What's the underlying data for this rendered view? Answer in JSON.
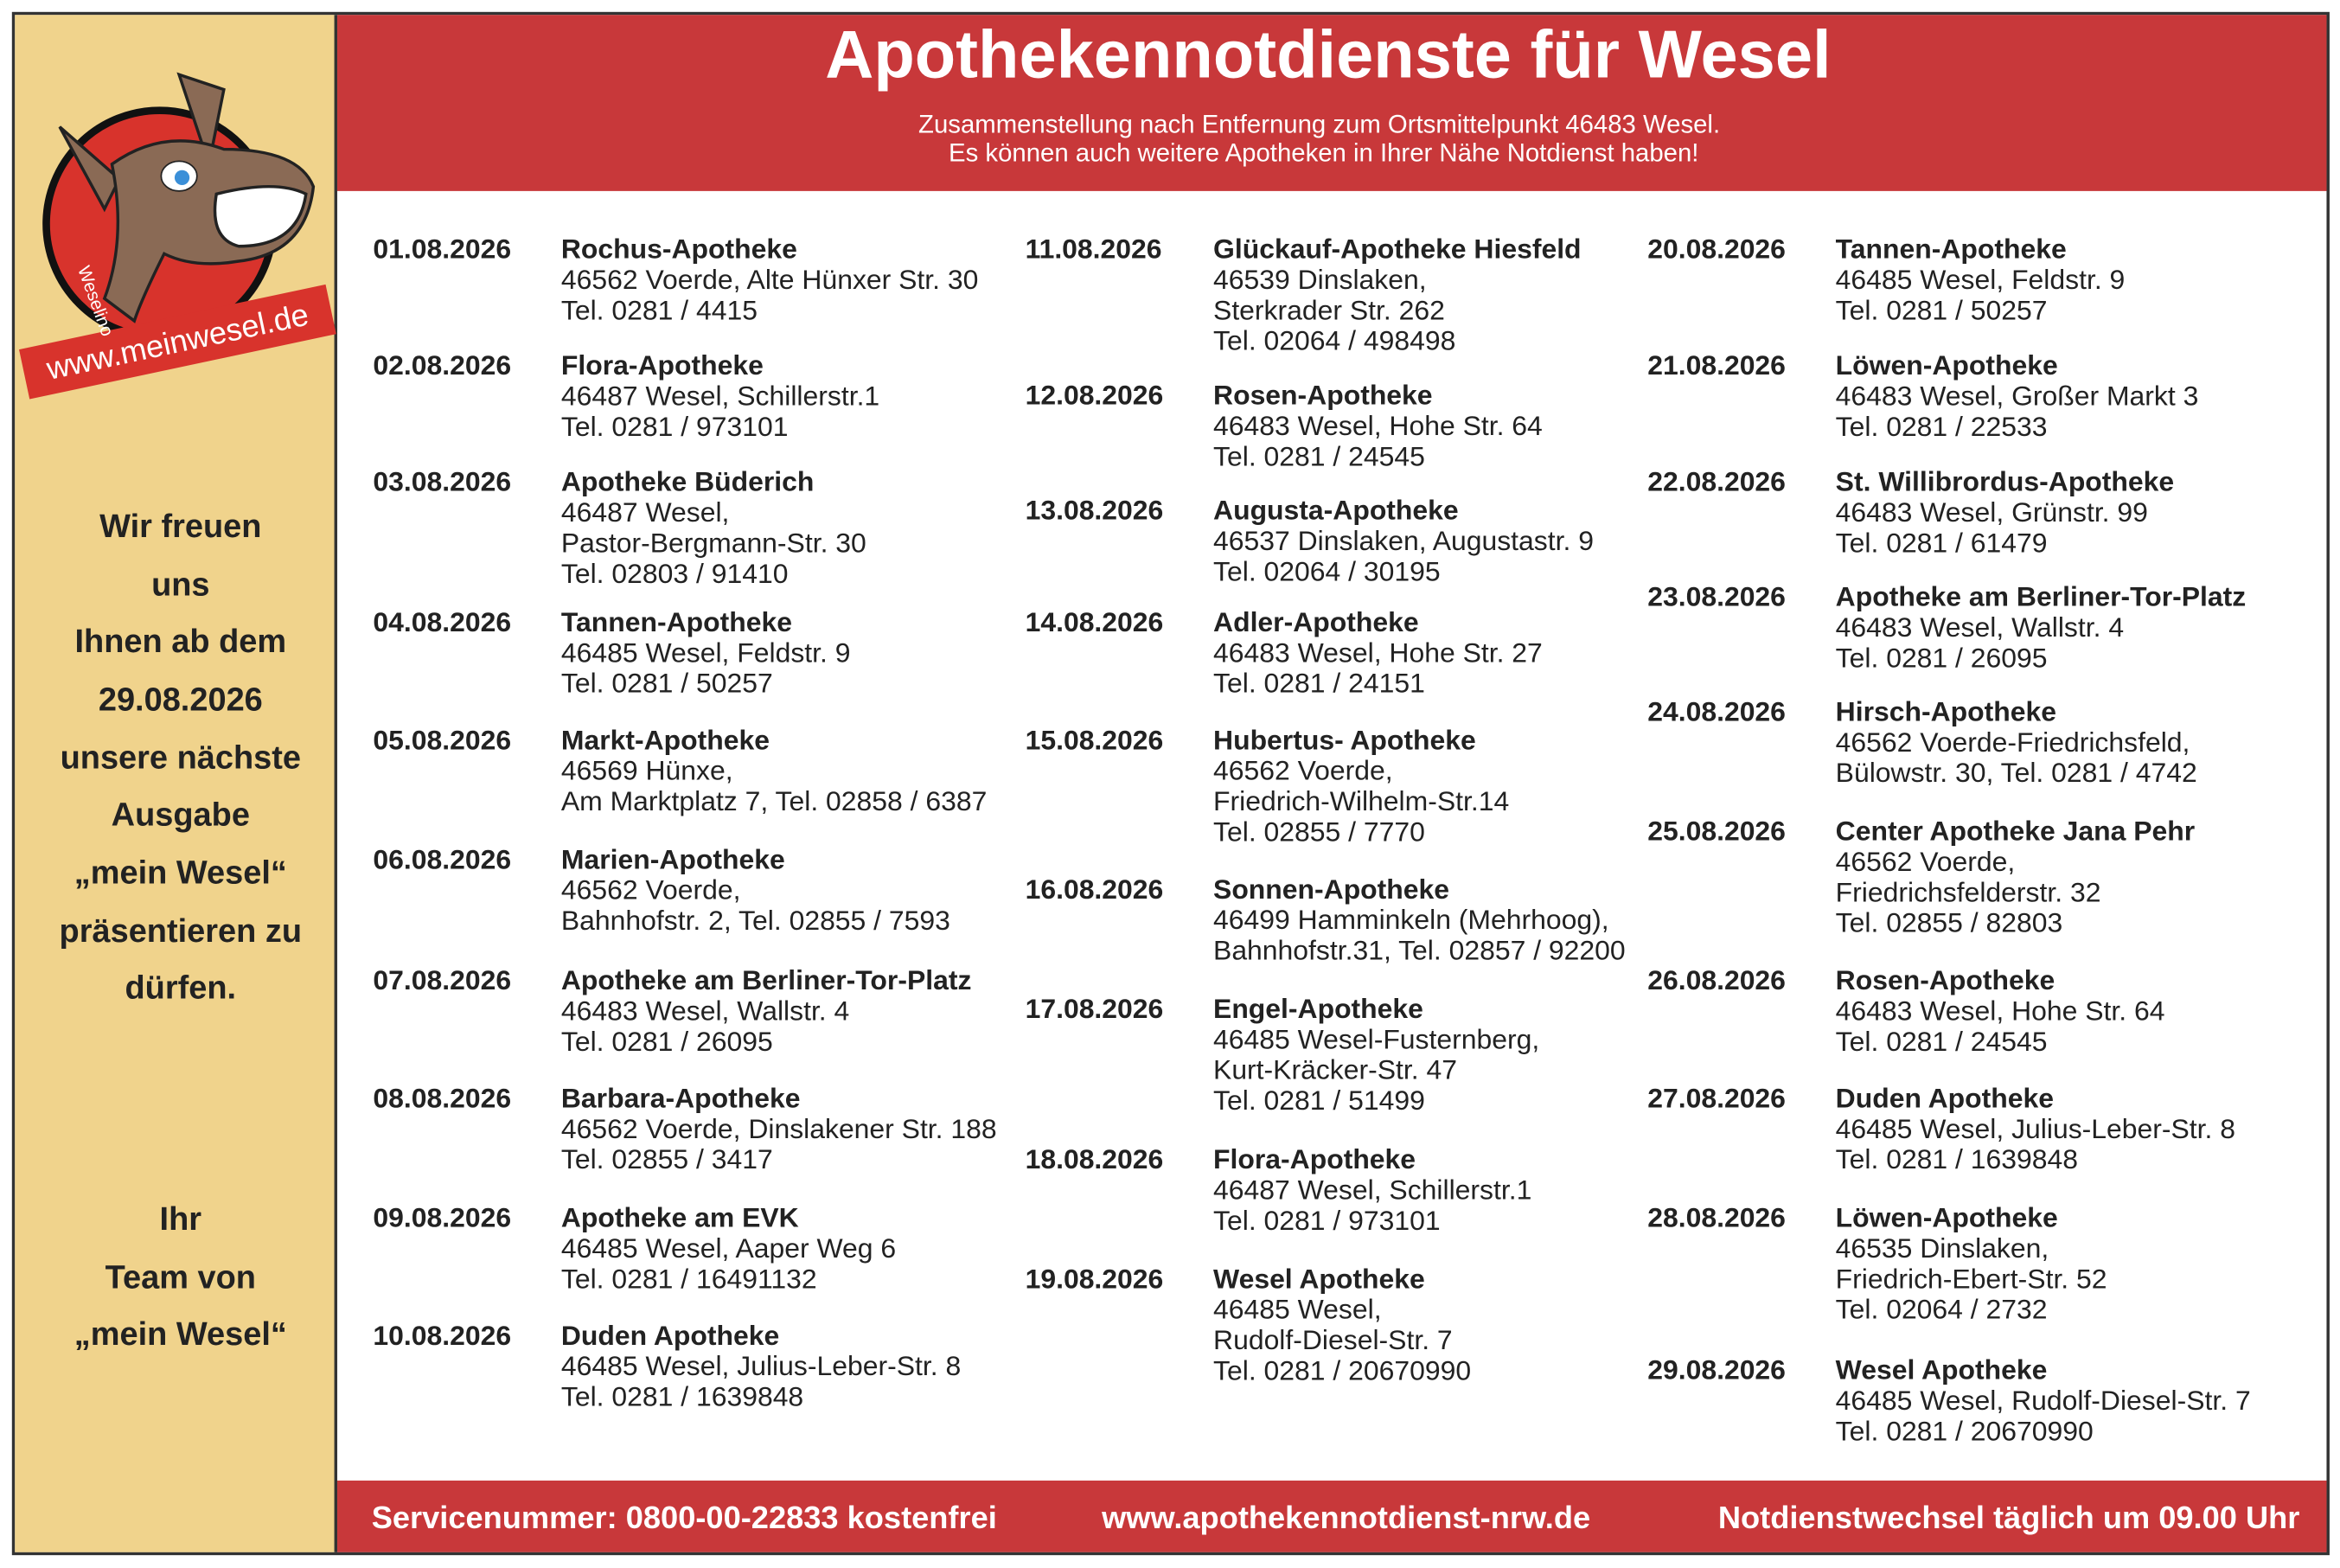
{
  "logo": {
    "mascot": "Weselino",
    "url": "www.meinwesel.de"
  },
  "header": {
    "title": "Apothekennotdienste für Wesel",
    "subtitle": [
      "Zusammenstellung nach Entfernung zum Ortsmittelpunkt 46483 Wesel.",
      "Es können auch weitere Apotheken in Ihrer Nähe Notdienst haben!"
    ]
  },
  "sidebar": {
    "message": [
      "Wir freuen",
      "uns",
      "Ihnen ab dem",
      "29.08.2026",
      "unsere nächste",
      "Ausgabe",
      "„mein Wesel“",
      "präsentieren zu",
      "dürfen."
    ],
    "signature": [
      "Ihr",
      "Team von",
      "„mein Wesel“"
    ]
  },
  "columns": [
    [
      {
        "date": "01.08.2026",
        "name": "Rochus-Apotheke",
        "lines": [
          "46562 Voerde, Alte Hünxer Str. 30",
          "Tel. 0281 / 4415"
        ]
      },
      {
        "date": "02.08.2026",
        "name": "Flora-Apotheke",
        "lines": [
          "46487 Wesel, Schillerstr.1",
          "Tel. 0281 / 973101"
        ]
      },
      {
        "date": "03.08.2026",
        "name": "Apotheke Büderich",
        "lines": [
          "46487 Wesel,",
          "Pastor-Bergmann-Str. 30",
          "Tel. 02803 / 91410"
        ]
      },
      {
        "date": "04.08.2026",
        "name": "Tannen-Apotheke",
        "lines": [
          "46485 Wesel, Feldstr. 9",
          "Tel. 0281 / 50257"
        ]
      },
      {
        "date": "05.08.2026",
        "name": "Markt-Apotheke",
        "lines": [
          "46569 Hünxe,",
          "Am Marktplatz 7, Tel. 02858 / 6387"
        ]
      },
      {
        "date": "06.08.2026",
        "name": "Marien-Apotheke",
        "lines": [
          "46562 Voerde,",
          "Bahnhofstr. 2, Tel. 02855 / 7593"
        ]
      },
      {
        "date": "07.08.2026",
        "name": "Apotheke am Berliner-Tor-Platz",
        "lines": [
          "46483 Wesel, Wallstr. 4",
          "Tel. 0281 / 26095"
        ]
      },
      {
        "date": "08.08.2026",
        "name": "Barbara-Apotheke",
        "lines": [
          "46562 Voerde, Dinslakener Str. 188",
          "Tel. 02855 / 3417"
        ]
      },
      {
        "date": "09.08.2026",
        "name": "Apotheke am EVK",
        "lines": [
          "46485 Wesel, Aaper Weg 6",
          "Tel. 0281 / 16491132"
        ]
      },
      {
        "date": "10.08.2026",
        "name": "Duden Apotheke",
        "lines": [
          "46485 Wesel, Julius-Leber-Str. 8",
          "Tel. 0281 / 1639848"
        ]
      }
    ],
    [
      {
        "date": "11.08.2026",
        "name": "Glückauf-Apotheke Hiesfeld",
        "lines": [
          "46539 Dinslaken,",
          "Sterkrader Str. 262",
          "Tel. 02064 / 498498"
        ]
      },
      {
        "date": "12.08.2026",
        "name": "Rosen-Apotheke",
        "lines": [
          "46483 Wesel, Hohe Str. 64",
          "Tel. 0281 / 24545"
        ]
      },
      {
        "date": "13.08.2026",
        "name": "Augusta-Apotheke",
        "lines": [
          "46537 Dinslaken, Augustastr. 9",
          "Tel. 02064 / 30195"
        ]
      },
      {
        "date": "14.08.2026",
        "name": "Adler-Apotheke",
        "lines": [
          "46483 Wesel, Hohe Str. 27",
          "Tel. 0281 / 24151"
        ]
      },
      {
        "date": "15.08.2026",
        "name": "Hubertus- Apotheke",
        "lines": [
          "46562 Voerde,",
          "Friedrich-Wilhelm-Str.14",
          "Tel. 02855 / 7770"
        ]
      },
      {
        "date": "16.08.2026",
        "name": "Sonnen-Apotheke",
        "lines": [
          "46499 Hamminkeln (Mehrhoog),",
          "Bahnhofstr.31, Tel. 02857 / 92200"
        ]
      },
      {
        "date": "17.08.2026",
        "name": "Engel-Apotheke",
        "lines": [
          "46485 Wesel-Fusternberg,",
          "Kurt-Kräcker-Str. 47",
          "Tel. 0281 / 51499"
        ]
      },
      {
        "date": "18.08.2026",
        "name": "Flora-Apotheke",
        "lines": [
          "46487 Wesel, Schillerstr.1",
          "Tel. 0281 / 973101"
        ]
      },
      {
        "date": "19.08.2026",
        "name": "Wesel Apotheke",
        "lines": [
          "46485 Wesel,",
          "Rudolf-Diesel-Str. 7",
          "Tel. 0281 / 20670990"
        ]
      }
    ],
    [
      {
        "date": "20.08.2026",
        "name": "Tannen-Apotheke",
        "lines": [
          "46485 Wesel, Feldstr. 9",
          "Tel. 0281 / 50257"
        ]
      },
      {
        "date": "21.08.2026",
        "name": "Löwen-Apotheke",
        "lines": [
          "46483 Wesel, Großer Markt 3",
          "Tel. 0281 / 22533"
        ]
      },
      {
        "date": "22.08.2026",
        "name": "St. Willibrordus-Apotheke",
        "lines": [
          "46483 Wesel, Grünstr. 99",
          "Tel. 0281 / 61479"
        ]
      },
      {
        "date": "23.08.2026",
        "name": "Apotheke am Berliner-Tor-Platz",
        "lines": [
          "46483 Wesel, Wallstr. 4",
          "Tel. 0281 / 26095"
        ]
      },
      {
        "date": "24.08.2026",
        "name": "Hirsch-Apotheke",
        "lines": [
          "46562 Voerde-Friedrichsfeld,",
          "Bülowstr. 30, Tel. 0281 / 4742"
        ]
      },
      {
        "date": "25.08.2026",
        "name": "Center Apotheke Jana Pehr",
        "lines": [
          "46562 Voerde,",
          "Friedrichsfelderstr. 32",
          "Tel. 02855 / 82803"
        ]
      },
      {
        "date": "26.08.2026",
        "name": "Rosen-Apotheke",
        "lines": [
          "46483 Wesel, Hohe Str. 64",
          "Tel. 0281 / 24545"
        ]
      },
      {
        "date": "27.08.2026",
        "name": "Duden Apotheke",
        "lines": [
          "46485 Wesel, Julius-Leber-Str. 8",
          "Tel. 0281 / 1639848"
        ]
      },
      {
        "date": "28.08.2026",
        "name": "Löwen-Apotheke",
        "lines": [
          "46535 Dinslaken,",
          "Friedrich-Ebert-Str. 52",
          "Tel. 02064 / 2732"
        ]
      },
      {
        "date": "29.08.2026",
        "name": "Wesel Apotheke",
        "lines": [
          "46485 Wesel, Rudolf-Diesel-Str. 7",
          "Tel. 0281 / 20670990"
        ]
      }
    ]
  ],
  "footer": {
    "service": "Servicenummer: 0800-00-22833 kostenfrei",
    "website": "www.apothekennotdienst-nrw.de",
    "change": "Notdienstwechsel täglich um 09.00 Uhr"
  }
}
